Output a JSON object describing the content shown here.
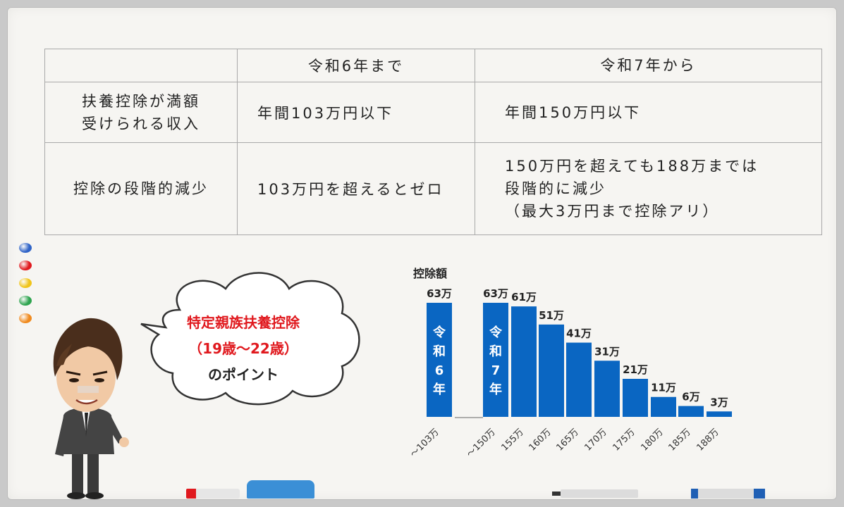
{
  "table": {
    "header": [
      "",
      "令和6年まで",
      "令和7年から"
    ],
    "rows": [
      {
        "label": [
          "扶養控除が満額",
          "受けられる収入"
        ],
        "before": [
          "年間103万円以下"
        ],
        "after": [
          "年間150万円以下"
        ]
      },
      {
        "label": [
          "控除の段階的減少"
        ],
        "before": [
          "103万円を超えるとゼロ"
        ],
        "after": [
          "150万円を超えても188万までは",
          "段階的に減少",
          "（最大3万円まで控除アリ）"
        ]
      }
    ]
  },
  "bubble": {
    "line1": "特定親族扶養控除",
    "line2": "（19歳～22歳）",
    "line3": "のポイント"
  },
  "chart_data": {
    "type": "bar",
    "ylabel": "控除額",
    "unit": "万",
    "series": [
      {
        "name": "令和6年",
        "categories": [
          "～103万"
        ],
        "values": [
          63
        ],
        "labels": [
          "63万"
        ],
        "color": "#0a66c2"
      },
      {
        "name": "令和7年",
        "categories": [
          "～150万",
          "155万",
          "160万",
          "165万",
          "170万",
          "175万",
          "180万",
          "185万",
          "188万"
        ],
        "values": [
          63,
          61,
          51,
          41,
          31,
          21,
          11,
          6,
          3
        ],
        "labels": [
          "63万",
          "61万",
          "51万",
          "41万",
          "31万",
          "21万",
          "11万",
          "6万",
          "3万"
        ],
        "color": "#0a66c2"
      }
    ],
    "bar_text": [
      "令",
      "和",
      "6",
      "年"
    ],
    "bar_text2": [
      "令",
      "和",
      "7",
      "年"
    ],
    "ylim": [
      0,
      63
    ]
  },
  "colors": {
    "bar": "#0a66c2",
    "accent_red": "#e0191e",
    "board": "#f6f5f2"
  },
  "dots": [
    "#2f63c7",
    "#e0191e",
    "#f0c419",
    "#2ea44f",
    "#f08a1e"
  ]
}
